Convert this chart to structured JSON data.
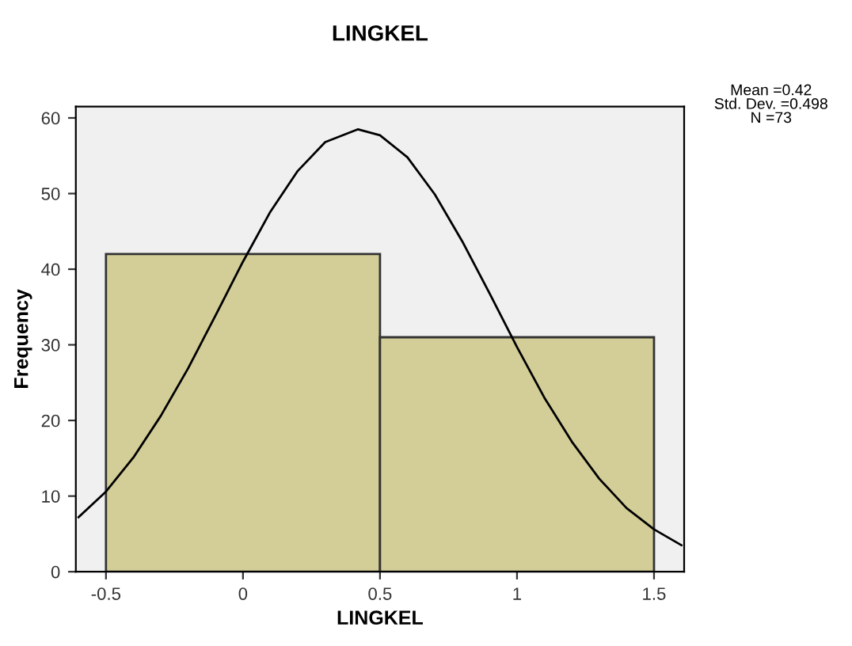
{
  "chart_data": {
    "type": "histogram",
    "title": "LINGKEL",
    "xlabel": "LINGKEL",
    "ylabel": "Frequency",
    "bins": [
      -0.5,
      0.5,
      1.5
    ],
    "values": [
      42,
      31
    ],
    "color": "#d3ce98",
    "series": [
      {
        "type": "line",
        "color": "#000000",
        "x": [
          -0.6,
          -0.5,
          -0.4,
          -0.3,
          -0.2,
          -0.1,
          0,
          0.1,
          0.2,
          0.3,
          0.42,
          0.5,
          0.6,
          0.7,
          0.8,
          0.9,
          1.0,
          1.1,
          1.2,
          1.3,
          1.4,
          1.5,
          1.6
        ],
        "values": [
          7.2,
          10.6,
          15.1,
          20.6,
          26.9,
          33.9,
          41.0,
          47.6,
          53.0,
          56.8,
          58.5,
          57.7,
          54.8,
          49.9,
          43.7,
          36.8,
          29.7,
          23.0,
          17.2,
          12.3,
          8.4,
          5.6,
          3.5
        ]
      }
    ],
    "xlim": [
      -0.61,
      1.61
    ],
    "ylim": [
      0,
      61.5
    ],
    "xticks": [
      -0.5,
      0,
      0.5,
      1,
      1.5
    ],
    "yticks": [
      0,
      10,
      20,
      30,
      40,
      50,
      60
    ],
    "grid": false,
    "legend": false,
    "annotations": [
      "Mean =0.42\nStd. Dev. =0.498\nN =73"
    ]
  }
}
